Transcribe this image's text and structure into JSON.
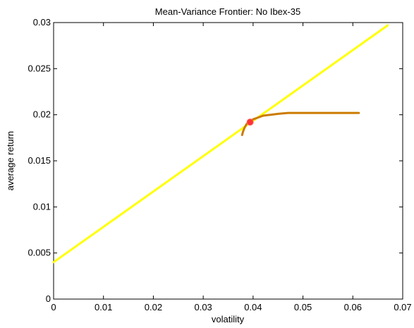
{
  "chart_data": {
    "type": "line",
    "title": "Mean-Variance Frontier: No Ibex-35",
    "xlabel": "volatility",
    "ylabel": "average return",
    "xlim": [
      0,
      0.07
    ],
    "ylim": [
      0,
      0.03
    ],
    "xticks": [
      "0",
      "0.01",
      "0.02",
      "0.03",
      "0.04",
      "0.05",
      "0.06",
      "0.07"
    ],
    "yticks": [
      "0",
      "0.005",
      "0.01",
      "0.015",
      "0.02",
      "0.025",
      "0.03"
    ],
    "grid": false,
    "series": [
      {
        "color": "#ffff00",
        "x": [
          0,
          0.067
        ],
        "y": [
          0.004,
          0.0297
        ]
      },
      {
        "color": "#cc7a00",
        "x": [
          0.0378,
          0.038,
          0.0383,
          0.0387,
          0.0393,
          0.04,
          0.041,
          0.042,
          0.0435,
          0.045,
          0.047,
          0.049,
          0.052,
          0.056,
          0.0612
        ],
        "y": [
          0.0178,
          0.0182,
          0.0186,
          0.019,
          0.0193,
          0.0195,
          0.0197,
          0.0199,
          0.02,
          0.0201,
          0.0202,
          0.0202,
          0.0202,
          0.0202,
          0.0202
        ]
      }
    ],
    "points": [
      {
        "x": 0.0394,
        "y": 0.0192,
        "color": "#ff3333"
      }
    ]
  }
}
